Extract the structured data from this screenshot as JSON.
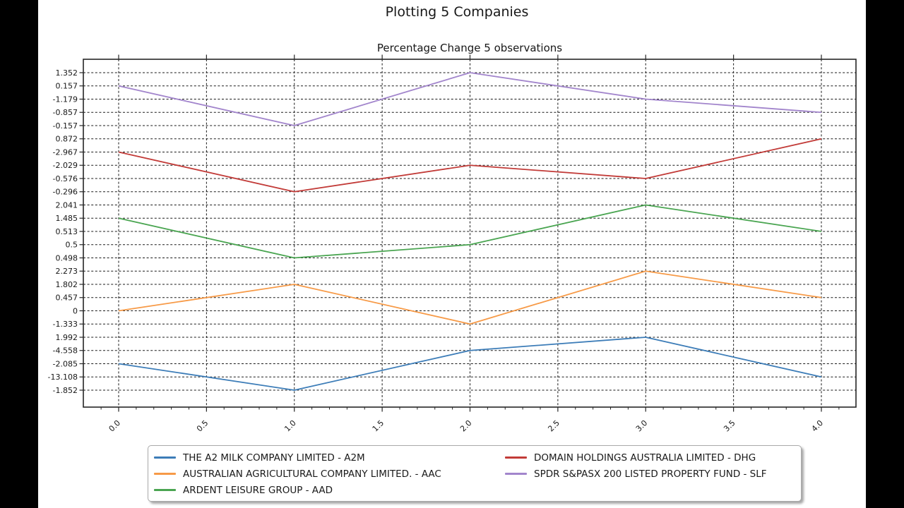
{
  "figure": {
    "title": "Plotting 5 Companies",
    "axes_title": "Percentage Change 5 observations"
  },
  "chart_data": {
    "type": "line",
    "title": "Percentage Change 5 observations",
    "xlabel": "",
    "ylabel": "",
    "grid": true,
    "legend_position": "bottom",
    "x": [
      0.0,
      1.0,
      2.0,
      3.0,
      4.0
    ],
    "x_tick_labels": [
      "0.0",
      "0.5",
      "1.0",
      "1.5",
      "2.0",
      "2.5",
      "3.0",
      "3.5",
      "4.0"
    ],
    "y_tick_labels": [
      "1.352",
      "0.157",
      "-1.179",
      "-0.857",
      "-0.157",
      "0.872",
      "-2.967",
      "-2.029",
      "-0.576",
      "-0.296",
      "2.041",
      "1.485",
      "0.513",
      "0.5",
      "0.498",
      "2.273",
      "1.802",
      "0.457",
      "0",
      "-1.333",
      "1.992",
      "-4.558",
      "-2.085",
      "-13.108",
      "-1.852"
    ],
    "series": [
      {
        "name": "THE A2 MILK COMPANY LIMITED - A2M",
        "color": "#3d7db8",
        "values": [
          -2.085,
          -1.852,
          -4.558,
          1.992,
          -13.108
        ],
        "y_tick_indices": [
          22,
          24,
          21,
          20,
          23
        ]
      },
      {
        "name": "AUSTRALIAN AGRICULTURAL COMPANY LIMITED. - AAC",
        "color": "#f79a47",
        "values": [
          0,
          1.802,
          -1.333,
          2.273,
          0.457
        ],
        "y_tick_indices": [
          18,
          16,
          19,
          15,
          17
        ]
      },
      {
        "name": "ARDENT LEISURE GROUP - AAD",
        "color": "#4aa551",
        "values": [
          1.485,
          0.498,
          0.5,
          2.041,
          0.513
        ],
        "y_tick_indices": [
          11,
          14,
          13,
          10,
          12
        ]
      },
      {
        "name": "DOMAIN HOLDINGS AUSTRALIA LIMITED - DHG",
        "color": "#c23b38",
        "values": [
          -2.967,
          -0.296,
          -2.029,
          -0.576,
          0.872
        ],
        "y_tick_indices": [
          6,
          9,
          7,
          8,
          5
        ]
      },
      {
        "name": "SPDR S&PASX 200 LISTED PROPERTY FUND - SLF",
        "color": "#a285cc",
        "values": [
          0.157,
          -0.157,
          1.352,
          -1.179,
          -0.857
        ],
        "y_tick_indices": [
          1,
          4,
          0,
          2,
          3
        ]
      }
    ],
    "legend_column1": [
      0,
      1,
      2
    ],
    "legend_column2": [
      3,
      4
    ]
  }
}
